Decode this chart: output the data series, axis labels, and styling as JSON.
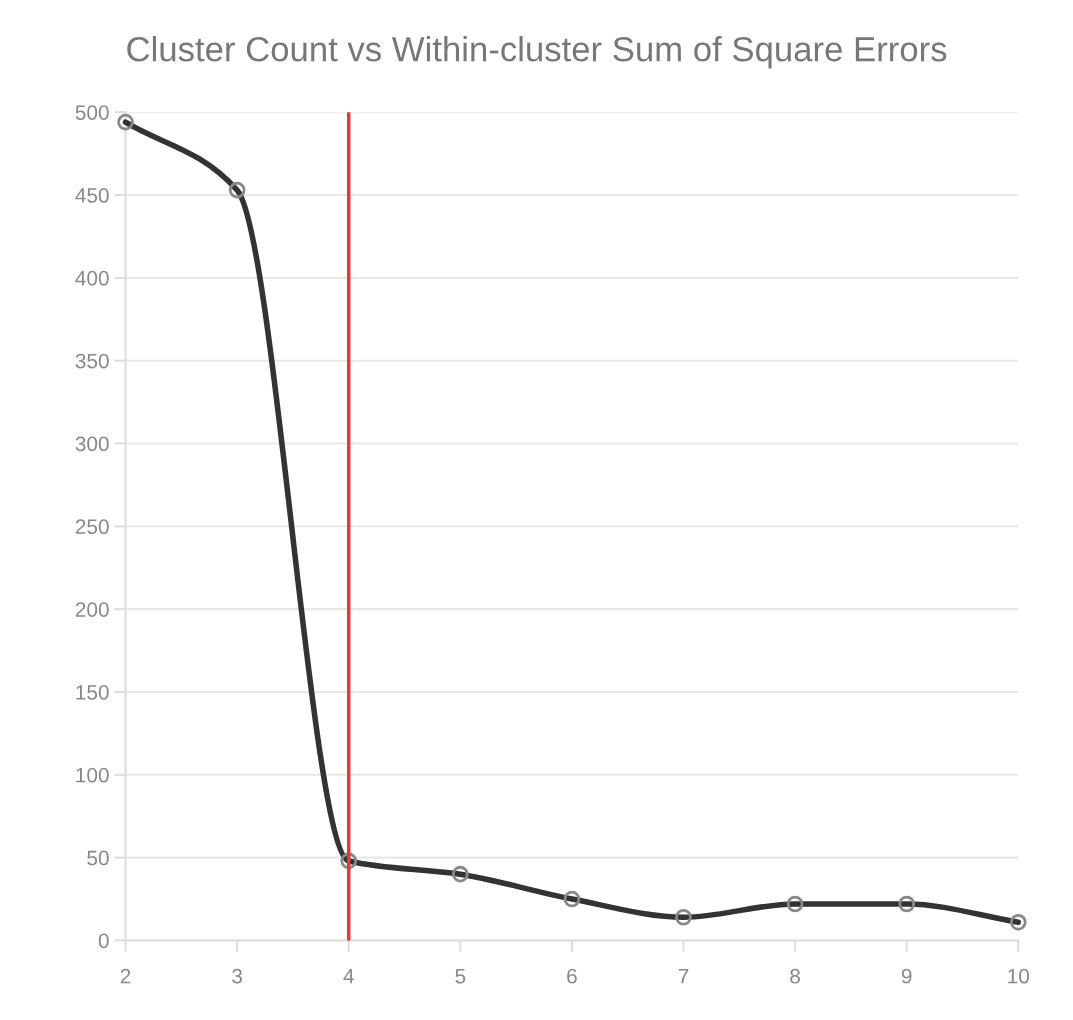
{
  "chart_data": {
    "type": "line",
    "title": "Cluster Count vs Within-cluster Sum of Square Errors",
    "x": [
      2,
      3,
      4,
      5,
      6,
      7,
      8,
      9,
      10
    ],
    "series": [
      {
        "color": "#333333",
        "values": [
          494,
          453,
          48,
          40,
          25,
          14,
          22,
          22,
          11
        ]
      }
    ],
    "xlim": [
      2,
      10
    ],
    "xticks": [
      2,
      3,
      4,
      5,
      6,
      7,
      8,
      9,
      10
    ],
    "ylim": [
      0,
      500
    ],
    "yticks": [
      0,
      50,
      100,
      150,
      200,
      250,
      300,
      350,
      400,
      450,
      500
    ],
    "grid": "y",
    "marker": "circle",
    "line_style": "solid",
    "legend": false,
    "ref_lines": [
      {
        "axis": "x",
        "value": 4,
        "color": "#e53935",
        "line_style": "solid"
      }
    ]
  }
}
